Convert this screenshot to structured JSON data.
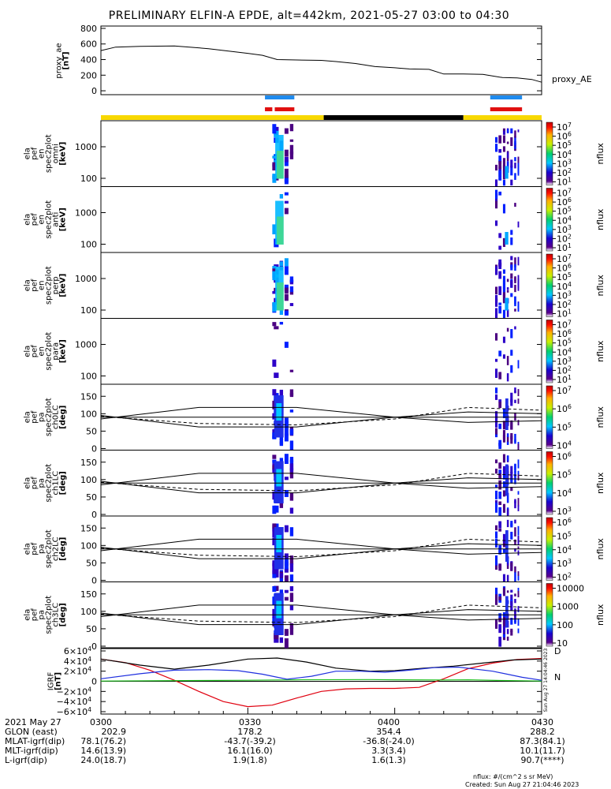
{
  "title": "PRELIMINARY ELFIN-A EPDE, alt=442km, 2021-05-27 03:00 to 04:30",
  "chart_data": [
    {
      "type": "line",
      "panel": "proxy_ae",
      "ylabel": [
        "proxy_ae",
        "[nT]"
      ],
      "yticks": [
        "800",
        "600",
        "400",
        "200",
        "0"
      ],
      "ylim": [
        -50,
        830
      ],
      "series_name": "proxy_AE",
      "x_minutes": [
        0,
        3,
        8,
        15,
        22,
        30,
        33,
        36,
        40,
        45,
        48,
        52,
        56,
        60,
        63,
        67,
        70,
        74,
        78,
        82,
        85,
        88,
        90
      ],
      "values": [
        515,
        560,
        570,
        575,
        540,
        480,
        455,
        400,
        395,
        390,
        375,
        350,
        310,
        295,
        280,
        275,
        215,
        215,
        210,
        170,
        165,
        145,
        110
      ]
    },
    {
      "type": "heatmap",
      "panel": "en_spectra",
      "panels": [
        {
          "ylabel": [
            "ela",
            "pef",
            "en",
            "spec2plot",
            "omni",
            "[keV]"
          ],
          "yticks": [
            "1000",
            "100"
          ],
          "cbar_ticks": [
            "10^7",
            "10^6",
            "10^5",
            "10^4",
            "10^3",
            "10^2",
            "10^1"
          ],
          "zlabel": "nflux"
        },
        {
          "ylabel": [
            "ela",
            "pef",
            "en",
            "spec2plot",
            "anti",
            "[keV]"
          ],
          "yticks": [
            "1000",
            "100"
          ],
          "cbar_ticks": [
            "10^7",
            "10^6",
            "10^5",
            "10^4",
            "10^3",
            "10^2",
            "10^1"
          ],
          "zlabel": "nflux"
        },
        {
          "ylabel": [
            "ela",
            "pef",
            "en",
            "spec2plot",
            "perp",
            "[keV]"
          ],
          "yticks": [
            "1000",
            "100"
          ],
          "cbar_ticks": [
            "10^7",
            "10^6",
            "10^5",
            "10^4",
            "10^3",
            "10^2",
            "10^1"
          ],
          "zlabel": "nflux"
        },
        {
          "ylabel": [
            "ela",
            "pef",
            "en",
            "spec2plot",
            "para",
            "[keV]"
          ],
          "yticks": [
            "1000",
            "100"
          ],
          "cbar_ticks": [
            "10^7",
            "10^6",
            "10^5",
            "10^4",
            "10^3",
            "10^2",
            "10^1"
          ],
          "zlabel": "nflux"
        }
      ]
    },
    {
      "type": "heatmap",
      "panel": "pa_spectra",
      "panels": [
        {
          "ylabel": [
            "ela",
            "pef",
            "pa",
            "spec2plot",
            "ch0LC",
            "[deg]"
          ],
          "yticks": [
            "150",
            "100",
            "50",
            "0"
          ],
          "cbar_ticks": [
            "10^7",
            "10^6",
            "10^5",
            "10^4"
          ],
          "zlabel": "nflux"
        },
        {
          "ylabel": [
            "ela",
            "pef",
            "pa",
            "spec2plot",
            "ch1LC",
            "[deg]"
          ],
          "yticks": [
            "150",
            "100",
            "50",
            "0"
          ],
          "cbar_ticks": [
            "10^6",
            "10^5",
            "10^4",
            "10^3"
          ],
          "zlabel": "nflux"
        },
        {
          "ylabel": [
            "ela",
            "pef",
            "pa",
            "spec2plot",
            "ch2LC",
            "[deg]"
          ],
          "yticks": [
            "150",
            "100",
            "50",
            "0"
          ],
          "cbar_ticks": [
            "10^6",
            "10^5",
            "10^4",
            "10^3",
            "10^2"
          ],
          "zlabel": "nflux"
        },
        {
          "ylabel": [
            "ela",
            "pef",
            "pa",
            "spec2plot",
            "ch3LC",
            "[deg]"
          ],
          "yticks": [
            "150",
            "100",
            "50",
            "0"
          ],
          "cbar_ticks": [
            "10000",
            "1000",
            "100",
            "10"
          ],
          "zlabel": "nflux"
        }
      ]
    },
    {
      "type": "line",
      "panel": "igrf",
      "ylabel": [
        "IGRF",
        "[nT]"
      ],
      "yticks": [
        "6×10^4",
        "4×10^4",
        "2×10^4",
        "0",
        "−2×10^4",
        "−4×10^4",
        "−6×10^4"
      ],
      "ylim": [
        -60000,
        60000
      ],
      "legend": [
        "D",
        "N"
      ],
      "series": [
        {
          "name": "D",
          "color": "#e0000f",
          "x_minutes": [
            0,
            5,
            10,
            15,
            20,
            25,
            30,
            35,
            40,
            45,
            50,
            55,
            60,
            65,
            70,
            75,
            80,
            85,
            90
          ],
          "values": [
            44000,
            37000,
            22000,
            2000,
            -20000,
            -40000,
            -50000,
            -47000,
            -33000,
            -20000,
            -15000,
            -14000,
            -14000,
            -12000,
            5000,
            25000,
            36000,
            43000,
            45000
          ]
        },
        {
          "name": "N",
          "color": "#1fbf1f",
          "x_minutes": [
            0,
            20,
            30,
            40,
            55,
            60,
            70,
            75,
            82,
            90
          ],
          "values": [
            500,
            1500,
            2000,
            3000,
            3500,
            3000,
            2500,
            3000,
            1500,
            500
          ]
        },
        {
          "color": "#000000",
          "x_minutes": [
            0,
            8,
            15,
            22,
            30,
            36,
            42,
            48,
            55,
            60,
            66,
            72,
            78,
            84,
            90
          ],
          "values": [
            44000,
            32000,
            24000,
            32000,
            44000,
            46000,
            38000,
            26000,
            20000,
            21000,
            26000,
            30000,
            36000,
            42000,
            44000
          ]
        },
        {
          "color": "#1f2fdf",
          "x_minutes": [
            0,
            8,
            15,
            22,
            28,
            33,
            38,
            43,
            48,
            53,
            58,
            63,
            68,
            73,
            80,
            86,
            90
          ],
          "values": [
            5000,
            15000,
            22000,
            23000,
            21000,
            14000,
            4000,
            10000,
            20000,
            20000,
            18000,
            22000,
            27000,
            28000,
            20000,
            8000,
            2000
          ]
        }
      ]
    }
  ],
  "indicator_bars": {
    "row1_blue": [
      [
        33.5,
        39.5
      ],
      [
        79.5,
        86
      ]
    ],
    "row2_red": [
      [
        33.5,
        35
      ],
      [
        35.5,
        39.5
      ],
      [
        79.5,
        86
      ]
    ],
    "orbit_yellow": [
      [
        0,
        45.5
      ],
      [
        74,
        90
      ]
    ],
    "orbit_black": [
      [
        45.5,
        74
      ]
    ]
  },
  "time_axis": {
    "labels": [
      "2021 May 27",
      "GLON (east)",
      "MLAT-igrf(dip)",
      "MLT-igrf(dip)",
      "L-igrf(dip)"
    ],
    "columns": [
      {
        "values": [
          "0300",
          "202.9",
          "78.1(76.2)",
          "14.6(13.9)",
          "24.0(18.7)"
        ]
      },
      {
        "values": [
          "0330",
          "178.2",
          "-43.7(-39.2)",
          "16.1(16.0)",
          "1.9(1.8)"
        ]
      },
      {
        "values": [
          "0400",
          "354.4",
          "-36.8(-24.0)",
          "3.3(3.4)",
          "1.6(1.3)"
        ]
      },
      {
        "values": [
          "0430",
          "288.2",
          "87.3(84.1)",
          "10.1(11.7)",
          "90.7(****)"
        ]
      }
    ]
  },
  "footer": {
    "units_note": "nflux: #/(cm^2 s sr MeV)",
    "created": "Created: Sun Aug 27 21:04:46 2023",
    "side_stamp": "Sun Aug 27 14:04:46 2023"
  },
  "colors": {
    "yellow": "#f8d800",
    "blue": "#1f8bef",
    "red": "#e01010",
    "black": "#000000"
  }
}
